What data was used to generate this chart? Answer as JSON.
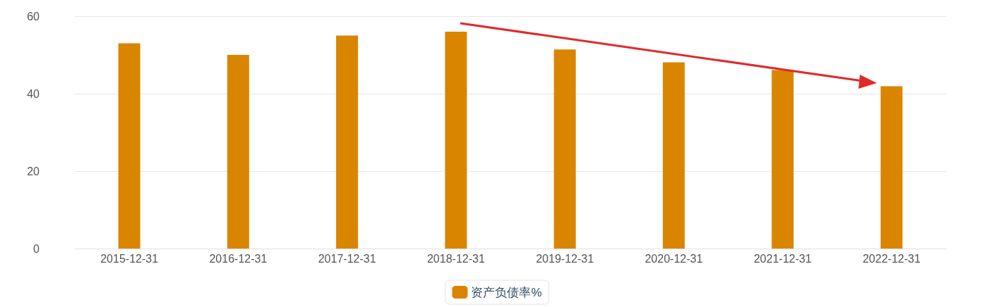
{
  "chart_data": {
    "type": "bar",
    "categories": [
      "2015-12-31",
      "2016-12-31",
      "2017-12-31",
      "2018-12-31",
      "2019-12-31",
      "2020-12-31",
      "2021-12-31",
      "2022-12-31"
    ],
    "series": [
      {
        "name": "资产负债率%",
        "color": "#d98500",
        "values": [
          53.0,
          50.0,
          55.0,
          56.0,
          51.4,
          48.1,
          46.1,
          41.9
        ]
      }
    ],
    "ylim": [
      0,
      60
    ],
    "yticks": [
      0,
      20,
      40,
      60
    ],
    "grid": "y",
    "legend": "bottom"
  }
}
